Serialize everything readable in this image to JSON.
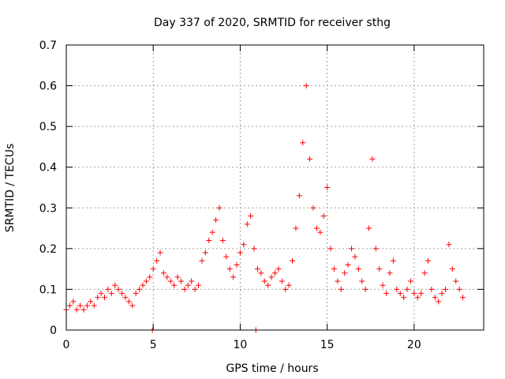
{
  "chart_data": {
    "type": "scatter",
    "title": "Day 337 of 2020, SRMTID for receiver sthg",
    "xlabel": "GPS time / hours",
    "ylabel": "SRMTID / TECUs",
    "xlim": [
      0,
      24
    ],
    "ylim": [
      0,
      0.7
    ],
    "x_ticks": [
      0,
      5,
      10,
      15,
      20
    ],
    "x_tick_labels": [
      "0",
      "5",
      "10",
      "15",
      "20"
    ],
    "y_ticks": [
      0,
      0.1,
      0.2,
      0.3,
      0.4,
      0.5,
      0.6,
      0.7
    ],
    "y_tick_labels": [
      "0",
      "0.1",
      "0.2",
      "0.3",
      "0.4",
      "0.5",
      "0.6",
      "0.7"
    ],
    "grid": true,
    "marker": "plus",
    "color": "#ff0000",
    "series": [
      {
        "name": "SRMTID",
        "x": [
          0.0,
          0.2,
          0.4,
          0.6,
          0.8,
          1.0,
          1.2,
          1.4,
          1.6,
          1.8,
          2.0,
          2.2,
          2.4,
          2.6,
          2.8,
          3.0,
          3.2,
          3.4,
          3.6,
          3.8,
          4.0,
          4.2,
          4.4,
          4.6,
          4.8,
          5.0,
          5.2,
          5.4,
          5.6,
          5.8,
          6.0,
          6.2,
          6.4,
          6.6,
          6.8,
          7.0,
          7.2,
          7.4,
          7.6,
          7.8,
          8.0,
          8.2,
          8.4,
          8.6,
          8.8,
          9.0,
          9.2,
          9.4,
          9.6,
          9.8,
          10.0,
          10.2,
          10.4,
          10.6,
          10.8,
          11.0,
          11.2,
          11.4,
          11.6,
          11.8,
          12.0,
          12.2,
          12.4,
          12.6,
          12.8,
          13.0,
          13.2,
          13.4,
          13.6,
          13.8,
          14.0,
          14.2,
          14.4,
          14.6,
          14.8,
          15.0,
          15.2,
          15.4,
          15.6,
          15.8,
          16.0,
          16.2,
          16.4,
          16.6,
          16.8,
          17.0,
          17.2,
          17.4,
          17.6,
          17.8,
          18.0,
          18.2,
          18.4,
          18.6,
          18.8,
          19.0,
          19.2,
          19.4,
          19.6,
          19.8,
          20.0,
          20.2,
          20.4,
          20.6,
          20.8,
          21.0,
          21.2,
          21.4,
          21.6,
          21.8,
          22.0,
          22.2,
          22.4,
          22.6,
          22.8,
          4.95,
          10.9
        ],
        "y": [
          0.05,
          0.06,
          0.07,
          0.05,
          0.06,
          0.05,
          0.06,
          0.07,
          0.06,
          0.08,
          0.09,
          0.08,
          0.1,
          0.09,
          0.11,
          0.1,
          0.09,
          0.08,
          0.07,
          0.06,
          0.09,
          0.1,
          0.11,
          0.12,
          0.13,
          0.15,
          0.17,
          0.19,
          0.14,
          0.13,
          0.12,
          0.11,
          0.13,
          0.12,
          0.1,
          0.11,
          0.12,
          0.1,
          0.11,
          0.17,
          0.19,
          0.22,
          0.24,
          0.27,
          0.3,
          0.22,
          0.18,
          0.15,
          0.13,
          0.16,
          0.19,
          0.21,
          0.26,
          0.28,
          0.2,
          0.15,
          0.14,
          0.12,
          0.11,
          0.13,
          0.14,
          0.15,
          0.12,
          0.1,
          0.11,
          0.17,
          0.25,
          0.33,
          0.46,
          0.6,
          0.42,
          0.3,
          0.25,
          0.24,
          0.28,
          0.35,
          0.2,
          0.15,
          0.12,
          0.1,
          0.14,
          0.16,
          0.2,
          0.18,
          0.15,
          0.12,
          0.1,
          0.25,
          0.42,
          0.2,
          0.15,
          0.11,
          0.09,
          0.14,
          0.17,
          0.1,
          0.09,
          0.08,
          0.1,
          0.12,
          0.09,
          0.08,
          0.09,
          0.14,
          0.17,
          0.1,
          0.08,
          0.07,
          0.09,
          0.1,
          0.21,
          0.15,
          0.12,
          0.1,
          0.08,
          0.0,
          0.0
        ]
      }
    ]
  }
}
